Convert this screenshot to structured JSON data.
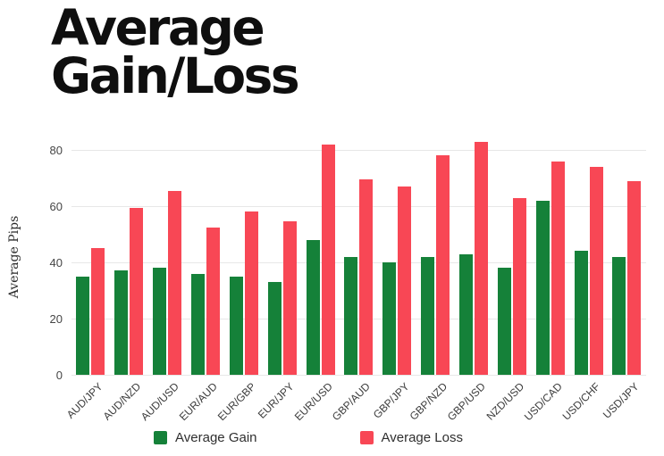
{
  "title": "Average Gain/Loss",
  "colors": {
    "gain": "#158139",
    "loss": "#F84755",
    "title_text": "#0f0f0f",
    "gridline": "#e7e7e7",
    "tick_text": "#454545",
    "background": "#ffffff"
  },
  "chart_data": {
    "type": "bar",
    "title": "Average Gain/Loss",
    "xlabel": "",
    "ylabel": "Average Pips",
    "categories": [
      "AUD/JPY",
      "AUD/NZD",
      "AUD/USD",
      "EUR/AUD",
      "EUR/GBP",
      "EUR/JPY",
      "EUR/USD",
      "GBP/AUD",
      "GBP/JPY",
      "GBP/NZD",
      "GBP/USD",
      "NZD/USD",
      "USD/CAD",
      "USD/CHF",
      "USD/JPY"
    ],
    "series": [
      {
        "name": "Average Gain",
        "color": "#158139",
        "values": [
          35,
          37,
          38,
          36,
          35,
          33,
          48,
          42,
          40,
          42,
          43,
          38,
          62,
          44,
          42
        ]
      },
      {
        "name": "Average Loss",
        "color": "#F84755",
        "values": [
          45,
          59.5,
          65.5,
          52.5,
          58,
          54.5,
          82,
          69.5,
          67,
          78,
          83,
          63,
          76,
          74,
          69
        ]
      }
    ],
    "ylim": [
      0,
      84.4
    ],
    "yticks": [
      0,
      20,
      40,
      60,
      80
    ],
    "grid": true,
    "legend_position": "bottom",
    "x_tick_rotation": -45
  },
  "legend": {
    "items": [
      {
        "label": "Average Gain",
        "color": "#158139"
      },
      {
        "label": "Average Loss",
        "color": "#F84755"
      }
    ]
  }
}
